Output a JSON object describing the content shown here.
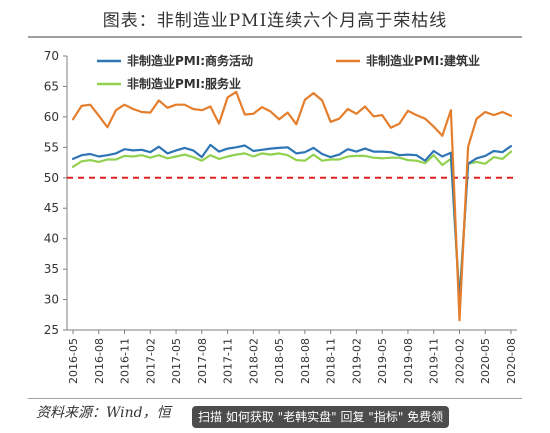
{
  "chart_data": {
    "type": "line",
    "title": "图表：非制造业PMI连续六个月高于荣枯线",
    "xlabel": "",
    "ylabel": "",
    "ylim": [
      25,
      70
    ],
    "yticks": [
      25,
      30,
      35,
      40,
      45,
      50,
      55,
      60,
      65,
      70
    ],
    "x_tick_labels": [
      "2016-05",
      "2016-08",
      "2016-11",
      "2017-02",
      "2017-05",
      "2017-08",
      "2017-11",
      "2018-02",
      "2018-05",
      "2018-08",
      "2018-11",
      "2019-02",
      "2019-05",
      "2019-08",
      "2019-11",
      "2020-02",
      "2020-05",
      "2020-08"
    ],
    "x": [
      "2016-05",
      "2016-06",
      "2016-07",
      "2016-08",
      "2016-09",
      "2016-10",
      "2016-11",
      "2016-12",
      "2017-01",
      "2017-02",
      "2017-03",
      "2017-04",
      "2017-05",
      "2017-06",
      "2017-07",
      "2017-08",
      "2017-09",
      "2017-10",
      "2017-11",
      "2017-12",
      "2018-01",
      "2018-02",
      "2018-03",
      "2018-04",
      "2018-05",
      "2018-06",
      "2018-07",
      "2018-08",
      "2018-09",
      "2018-10",
      "2018-11",
      "2018-12",
      "2019-01",
      "2019-02",
      "2019-03",
      "2019-04",
      "2019-05",
      "2019-06",
      "2019-07",
      "2019-08",
      "2019-09",
      "2019-10",
      "2019-11",
      "2019-12",
      "2020-01",
      "2020-02",
      "2020-03",
      "2020-04",
      "2020-05",
      "2020-06",
      "2020-07",
      "2020-08"
    ],
    "series": [
      {
        "name": "非制造业PMI:商务活动",
        "color": "#2e75b6",
        "values": [
          53.1,
          53.7,
          53.9,
          53.5,
          53.7,
          54.0,
          54.7,
          54.5,
          54.6,
          54.2,
          55.1,
          54.0,
          54.5,
          54.9,
          54.5,
          53.4,
          55.4,
          54.3,
          54.8,
          55.0,
          55.3,
          54.4,
          54.6,
          54.8,
          54.9,
          55.0,
          54.0,
          54.2,
          54.9,
          53.9,
          53.4,
          53.8,
          54.7,
          54.3,
          54.8,
          54.3,
          54.3,
          54.2,
          53.7,
          53.8,
          53.7,
          52.8,
          54.4,
          53.5,
          54.1,
          29.6,
          52.3,
          53.2,
          53.6,
          54.4,
          54.2,
          55.2
        ]
      },
      {
        "name": "非制造业PMI:建筑业",
        "color": "#e57e2c",
        "values": [
          59.6,
          61.8,
          62.0,
          60.2,
          58.3,
          61.1,
          62.0,
          61.3,
          60.8,
          60.7,
          62.7,
          61.5,
          62.0,
          62.0,
          61.3,
          61.1,
          61.7,
          58.9,
          63.2,
          64.1,
          60.4,
          60.5,
          61.6,
          60.9,
          59.6,
          60.7,
          58.8,
          62.8,
          63.9,
          62.7,
          59.2,
          59.7,
          61.3,
          60.5,
          61.7,
          60.1,
          60.3,
          58.2,
          58.9,
          61.0,
          60.3,
          59.7,
          58.4,
          56.9,
          61.1,
          26.6,
          55.1,
          59.7,
          60.8,
          60.3,
          60.8,
          60.2
        ]
      },
      {
        "name": "非制造业PMI:服务业",
        "color": "#92d050",
        "values": [
          51.8,
          52.7,
          52.9,
          52.6,
          53.0,
          53.0,
          53.6,
          53.5,
          53.7,
          53.3,
          53.7,
          53.2,
          53.5,
          53.8,
          53.4,
          52.8,
          53.7,
          53.1,
          53.5,
          53.8,
          54.0,
          53.5,
          54.0,
          53.8,
          54.0,
          53.7,
          52.9,
          52.8,
          53.8,
          52.8,
          53.0,
          53.0,
          53.5,
          53.6,
          53.6,
          53.3,
          53.2,
          53.3,
          53.3,
          52.9,
          52.8,
          52.4,
          53.7,
          52.1,
          53.1,
          30.1,
          52.3,
          52.6,
          52.3,
          53.4,
          53.1,
          54.3
        ]
      }
    ],
    "reference_line": {
      "value": 50,
      "style": "dashed",
      "color": "#e02020"
    },
    "legend_placement": "top",
    "grid": false
  },
  "source": "资料来源：Wind，恒",
  "watermark": {
    "text": "扫描 如何获取 \"老韩实盘\" 回复 \"指标\" 免费领"
  }
}
